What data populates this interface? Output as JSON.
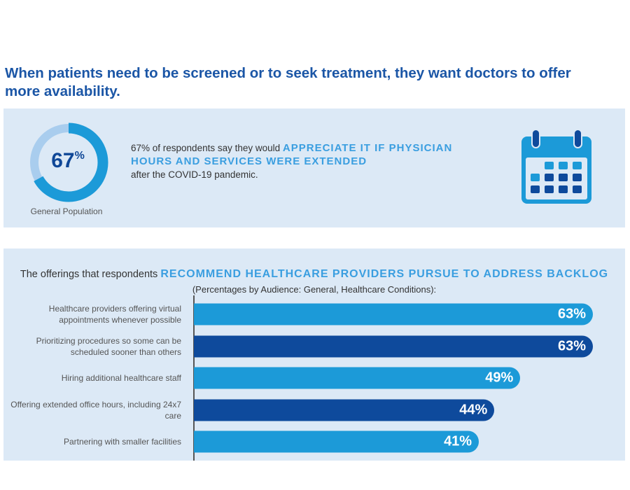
{
  "title": "When patients need to be screened or to seek treatment, they want doctors to offer more availability.",
  "stat": {
    "value": 67,
    "value_label": "67",
    "pct_sign": "%",
    "caption": "General Population",
    "text_pre": "67% of respondents say they would ",
    "text_highlight": "APPRECIATE IT IF PHYSICIAN HOURS AND SERVICES WERE EXTENDED",
    "text_post": " after the COVID-19 pandemic.",
    "icon": "calendar-icon"
  },
  "colors": {
    "title": "#1b56a6",
    "light_bar": "#1c9ad8",
    "dark_bar": "#0e4a9c",
    "panel": "#dce9f6",
    "highlight": "#3a9ee0"
  },
  "chart_data": {
    "type": "bar",
    "orientation": "horizontal",
    "title_pre": "The offerings that respondents ",
    "title_highlight": "RECOMMEND HEALTHCARE PROVIDERS PURSUE TO ADDRESS BACKLOG",
    "title_post": " (Percentages by Audience: General, Healthcare Conditions):",
    "categories": [
      "Healthcare providers offering virtual appointments whenever possible",
      "Prioritizing procedures so some can be scheduled sooner than others",
      "Hiring additional healthcare staff",
      "Offering extended office hours, including 24x7 care",
      "Partnering with smaller facilities"
    ],
    "values": [
      63,
      63,
      49,
      44,
      41
    ],
    "labels": [
      "63%",
      "63%",
      "49%",
      "44%",
      "41%"
    ],
    "bar_colors": [
      "#1c9ad8",
      "#0e4a9c",
      "#1c9ad8",
      "#0e4a9c",
      "#1c9ad8"
    ]
  }
}
